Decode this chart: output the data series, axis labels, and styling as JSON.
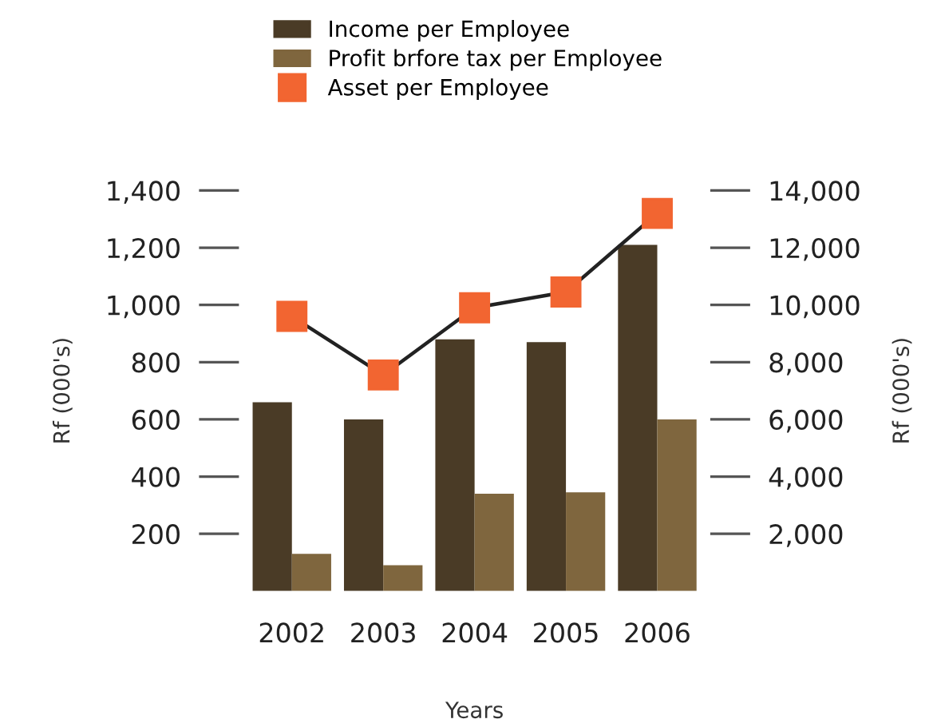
{
  "chart_data": {
    "type": "bar",
    "xlabel": "Years",
    "ylabel": "Rf (000's)",
    "y2label": "Rf (000's)",
    "categories": [
      "2002",
      "2003",
      "2004",
      "2005",
      "2006"
    ],
    "series": [
      {
        "name": "Income per Employee",
        "color": "#4a3b26",
        "values": [
          660,
          600,
          880,
          870,
          1210
        ]
      },
      {
        "name": "Profit brfore tax per Employee",
        "color": "#7f663e",
        "values": [
          130,
          90,
          340,
          345,
          600
        ]
      },
      {
        "name": "Asset per Employee",
        "color": "#f26531",
        "type": "line",
        "axis": "y2",
        "marker": "square",
        "values": [
          9600,
          7550,
          9900,
          10450,
          13200
        ]
      }
    ],
    "ylim": [
      0,
      1400
    ],
    "yticks": [
      200,
      400,
      600,
      800,
      {
        "value": 1000,
        "label": "1,000"
      },
      {
        "value": 1200,
        "label": "1,200"
      },
      {
        "value": 1400,
        "label": "1,400"
      }
    ],
    "y2lim": [
      0,
      14000
    ],
    "y2ticks": [
      {
        "value": 2000,
        "label": "2,000"
      },
      {
        "value": 4000,
        "label": "4,000"
      },
      {
        "value": 6000,
        "label": "6,000"
      },
      {
        "value": 8000,
        "label": "8,000"
      },
      {
        "value": 10000,
        "label": "10,000"
      },
      {
        "value": 12000,
        "label": "12,000"
      },
      {
        "value": 14000,
        "label": "14,000"
      }
    ],
    "grid": false,
    "legend": "top"
  }
}
